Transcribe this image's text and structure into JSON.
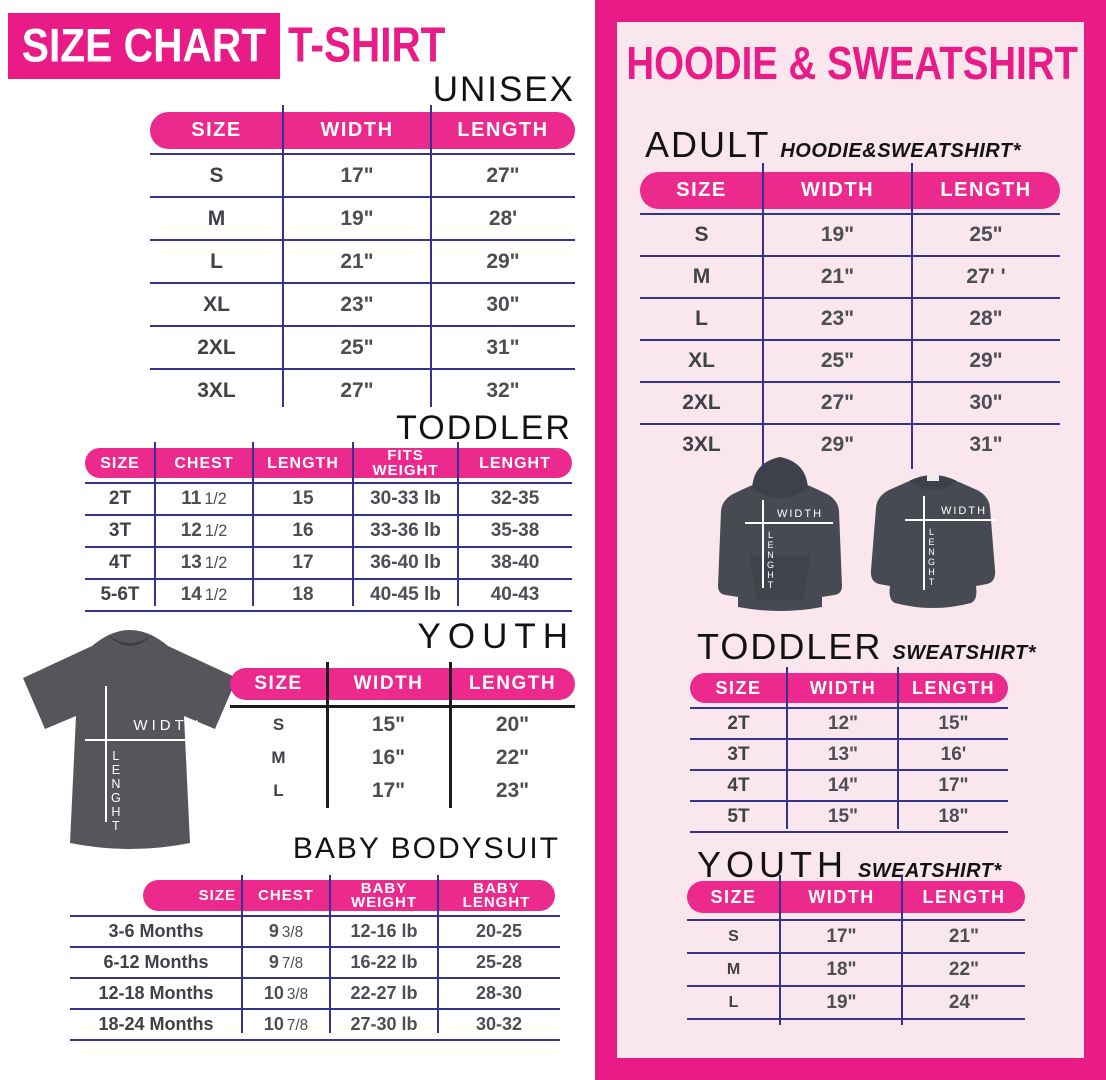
{
  "colors": {
    "pink": "#E91B87",
    "pill": "#EC2A8E",
    "panelbg": "#FAE7EE",
    "line": "#363390",
    "linedark": "#1B1B22",
    "text": "#4D4E53"
  },
  "left": {
    "banner": "SIZE CHART",
    "product": "T-SHIRT",
    "unisex": {
      "heading": "UNISEX",
      "headers": [
        "SIZE",
        "WIDTH",
        "LENGTH"
      ],
      "rows": [
        {
          "size": "S",
          "width": "17\"",
          "length": "27\""
        },
        {
          "size": "M",
          "width": "19\"",
          "length": "28'"
        },
        {
          "size": "L",
          "width": "21\"",
          "length": "29\""
        },
        {
          "size": "XL",
          "width": "23\"",
          "length": "30\""
        },
        {
          "size": "2XL",
          "width": "25\"",
          "length": "31\""
        },
        {
          "size": "3XL",
          "width": "27\"",
          "length": "32\""
        }
      ]
    },
    "toddler": {
      "heading": "TODDLER",
      "headers": [
        "SIZE",
        "CHEST",
        "LENGTH",
        "FITS WEIGHT",
        "LENGHT"
      ],
      "rows": [
        {
          "size": "2T",
          "chest": "11",
          "chest_frac": "1/2",
          "length": "15",
          "weight": "30-33 lb",
          "lenght": "32-35"
        },
        {
          "size": "3T",
          "chest": "12",
          "chest_frac": "1/2",
          "length": "16",
          "weight": "33-36 lb",
          "lenght": "35-38"
        },
        {
          "size": "4T",
          "chest": "13",
          "chest_frac": "1/2",
          "length": "17",
          "weight": "36-40 lb",
          "lenght": "38-40"
        },
        {
          "size": "5-6T",
          "chest": "14",
          "chest_frac": "1/2",
          "length": "18",
          "weight": "40-45 lb",
          "lenght": "40-43"
        }
      ]
    },
    "youth": {
      "heading": "YOUTH",
      "headers": [
        "SIZE",
        "WIDTH",
        "LENGTH"
      ],
      "rows": [
        {
          "size": "S",
          "width": "15\"",
          "length": "20\""
        },
        {
          "size": "M",
          "width": "16\"",
          "length": "22\""
        },
        {
          "size": "L",
          "width": "17\"",
          "length": "23\""
        }
      ]
    },
    "baby": {
      "heading": "BABY BODYSUIT",
      "headers": [
        "SIZE",
        "CHEST",
        "BABY WEIGHT",
        "BABY LENGHT"
      ],
      "rows": [
        {
          "size": "3-6 Months",
          "chest": "9",
          "chest_frac": "3/8",
          "weight": "12-16 lb",
          "lenght": "20-25"
        },
        {
          "size": "6-12 Months",
          "chest": "9",
          "chest_frac": "7/8",
          "weight": "16-22 lb",
          "lenght": "25-28"
        },
        {
          "size": "12-18 Months",
          "chest": "10",
          "chest_frac": "3/8",
          "weight": "22-27 lb",
          "lenght": "28-30"
        },
        {
          "size": "18-24 Months",
          "chest": "10",
          "chest_frac": "7/8",
          "weight": "27-30 lb",
          "lenght": "30-32"
        }
      ]
    },
    "tshirt": {
      "width_label": "WIDTH",
      "length_label": "LENGHT"
    }
  },
  "right": {
    "title": "HOODIE & SWEATSHIRT",
    "adult": {
      "heading": "ADULT",
      "sub": "HOODIE&SWEATSHIRT*",
      "headers": [
        "SIZE",
        "WIDTH",
        "LENGTH"
      ],
      "rows": [
        {
          "size": "S",
          "width": "19\"",
          "length": "25\""
        },
        {
          "size": "M",
          "width": "21\"",
          "length": "27' '"
        },
        {
          "size": "L",
          "width": "23\"",
          "length": "28\""
        },
        {
          "size": "XL",
          "width": "25\"",
          "length": "29\""
        },
        {
          "size": "2XL",
          "width": "27\"",
          "length": "30\""
        },
        {
          "size": "3XL",
          "width": "29\"",
          "length": "31\""
        }
      ]
    },
    "toddler": {
      "heading": "TODDLER",
      "sub": "SWEATSHIRT*",
      "headers": [
        "SIZE",
        "WIDTH",
        "LENGTH"
      ],
      "rows": [
        {
          "size": "2T",
          "width": "12\"",
          "length": "15\""
        },
        {
          "size": "3T",
          "width": "13\"",
          "length": "16'"
        },
        {
          "size": "4T",
          "width": "14\"",
          "length": "17\""
        },
        {
          "size": "5T",
          "width": "15\"",
          "length": "18\""
        }
      ]
    },
    "youth": {
      "heading": "YOUTH",
      "sub": "SWEATSHIRT*",
      "headers": [
        "SIZE",
        "WIDTH",
        "LENGTH"
      ],
      "rows": [
        {
          "size": "S",
          "width": "17\"",
          "length": "21\""
        },
        {
          "size": "M",
          "width": "18\"",
          "length": "22\""
        },
        {
          "size": "L",
          "width": "19\"",
          "length": "24\""
        }
      ]
    },
    "hoodie": {
      "width_label": "WIDTH",
      "length_label": "LENGHT"
    },
    "sweatshirt": {
      "width_label": "WIDTH",
      "length_label": "LENGHT"
    }
  }
}
